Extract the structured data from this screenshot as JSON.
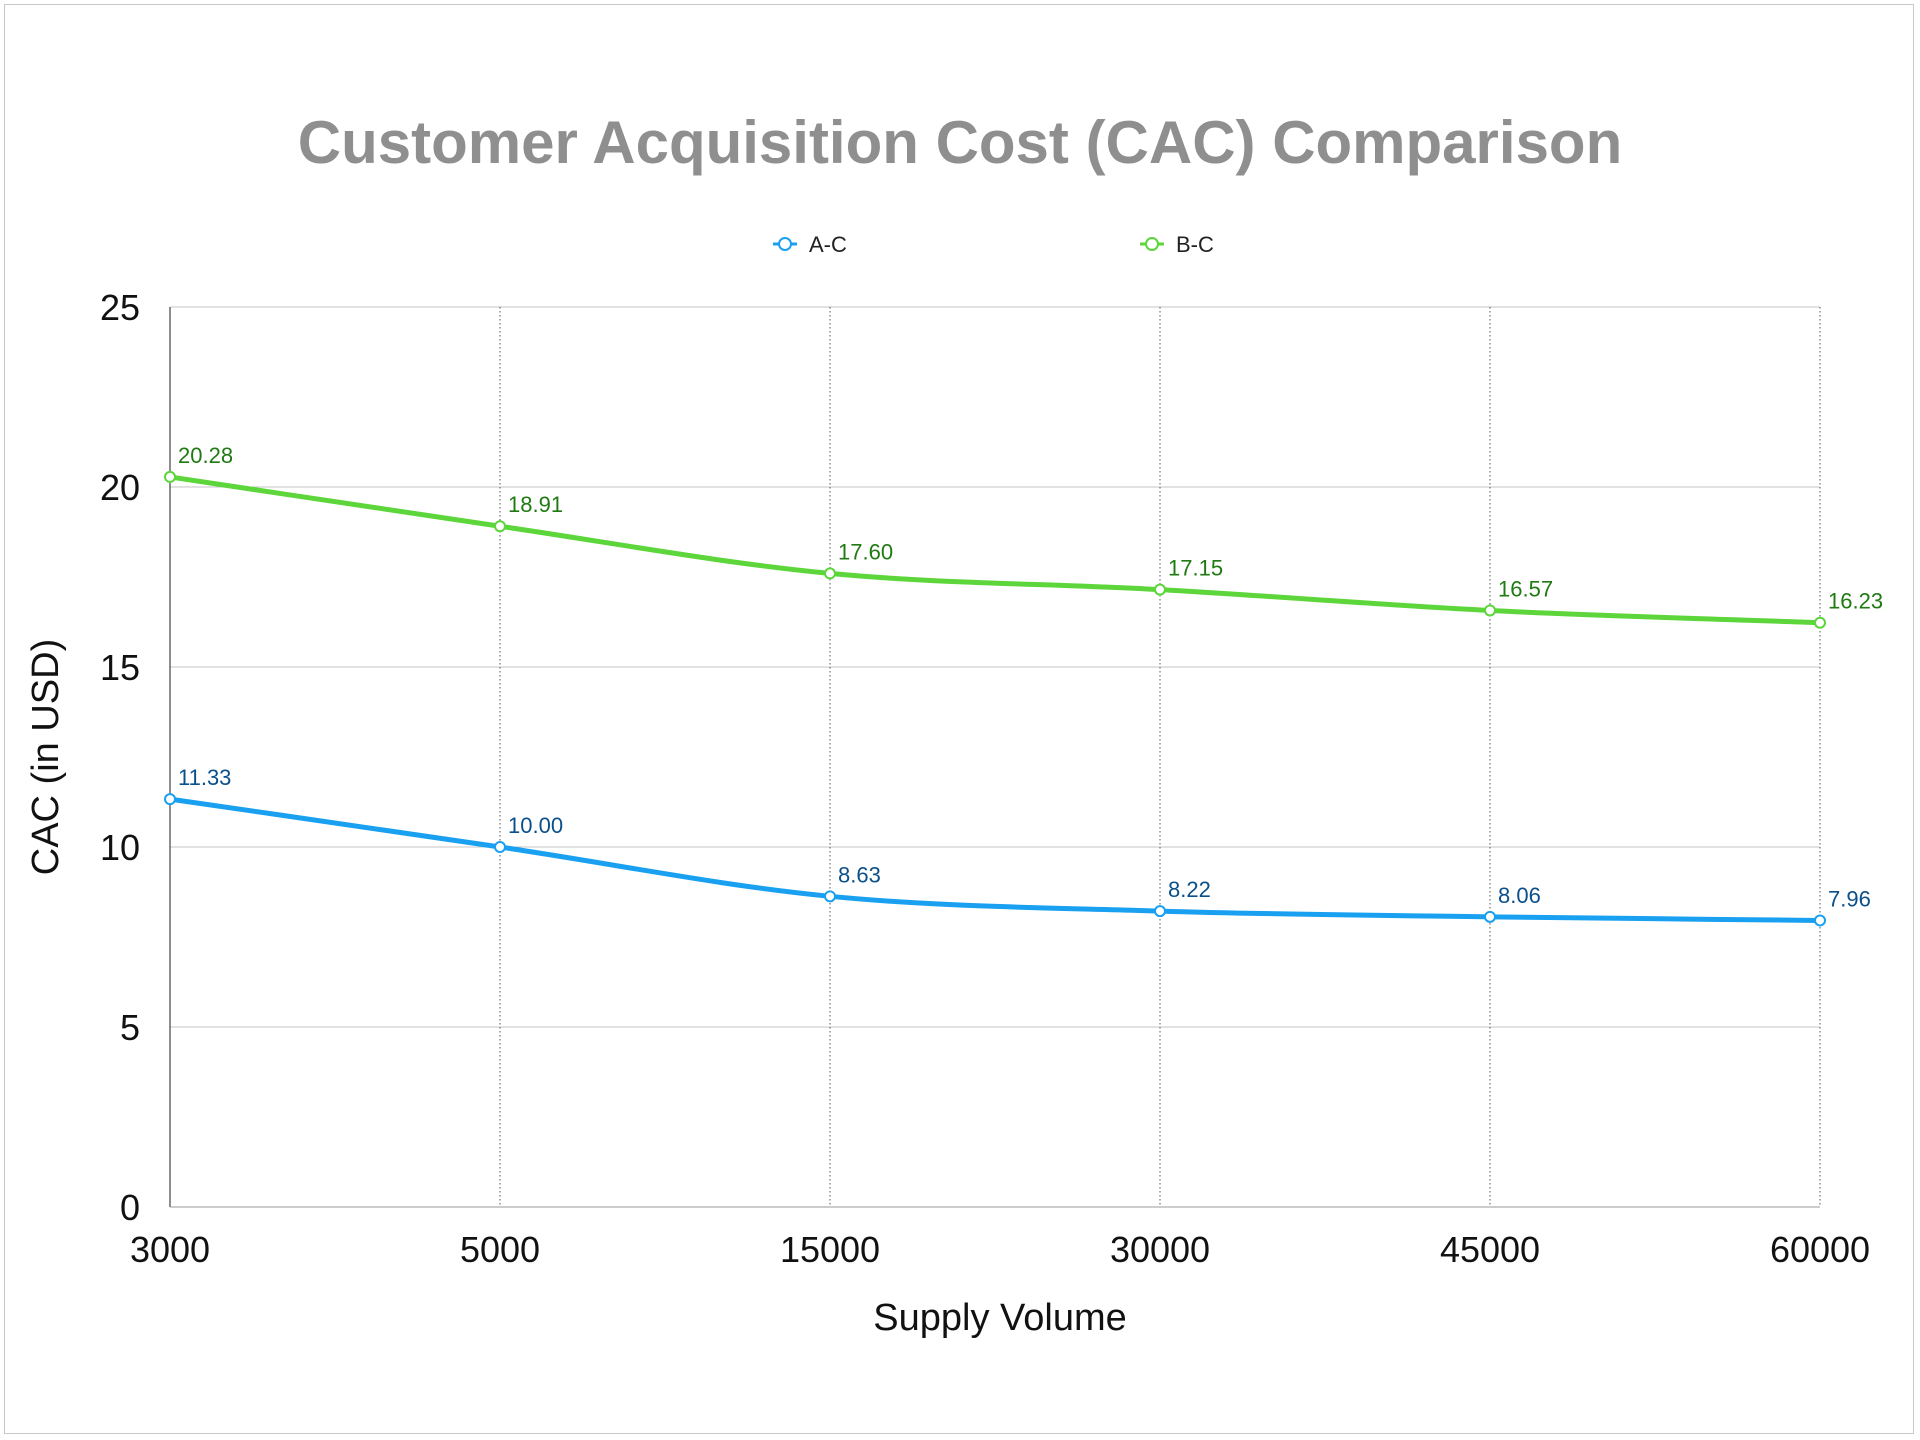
{
  "chart_data": {
    "type": "line",
    "title": "Customer Acquisition Cost (CAC) Comparison",
    "xlabel": "Supply Volume",
    "ylabel": "CAC (in USD)",
    "categories": [
      "3000",
      "5000",
      "15000",
      "30000",
      "45000",
      "60000"
    ],
    "ylim": [
      0,
      25
    ],
    "yticks": [
      "0",
      "5",
      "10",
      "15",
      "20",
      "25"
    ],
    "grid": true,
    "legend_position": "top-center",
    "series": [
      {
        "name": "A-C",
        "values": [
          11.33,
          10.0,
          8.63,
          8.22,
          8.06,
          7.96
        ],
        "labels": [
          "11.33",
          "10.00",
          "8.63",
          "8.22",
          "8.06",
          "7.96"
        ],
        "color": "#1aa0f0",
        "label_color": "#0b4f8a"
      },
      {
        "name": "B-C",
        "values": [
          20.28,
          18.91,
          17.6,
          17.15,
          16.57,
          16.23
        ],
        "labels": [
          "20.28",
          "18.91",
          "17.60",
          "17.15",
          "16.57",
          "16.23"
        ],
        "color": "#5cd63a",
        "label_color": "#1f7a12"
      }
    ]
  }
}
